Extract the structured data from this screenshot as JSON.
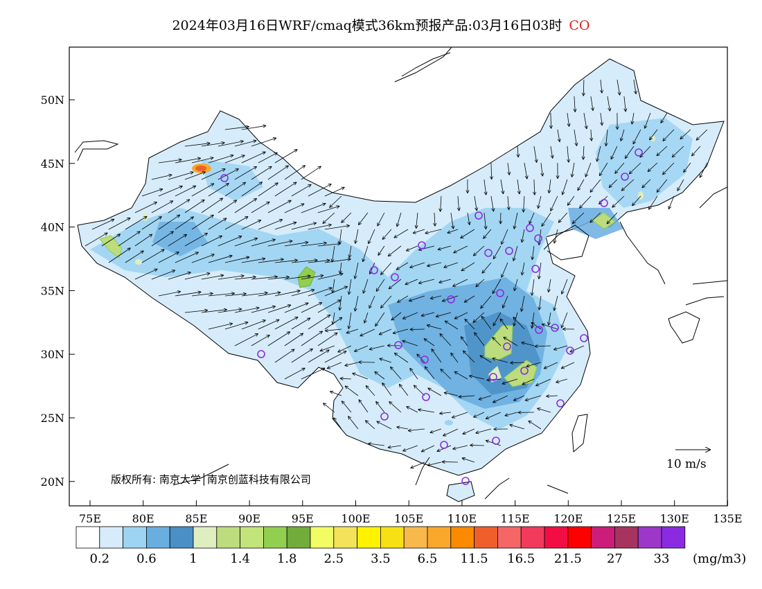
{
  "title": "2024年03月16日WRF/cmaq模式36km预报产品:03月16日03时",
  "pollutant": "CO",
  "x_ticks": [
    "75E",
    "80E",
    "85E",
    "90E",
    "95E",
    "100E",
    "105E",
    "110E",
    "115E",
    "120E",
    "125E",
    "130E",
    "135E"
  ],
  "y_ticks": [
    "50N",
    "45N",
    "40N",
    "35N",
    "30N",
    "25N",
    "20N"
  ],
  "copyright": "版权所有: 南京大学│南京创蓝科技有限公司",
  "scale_vector_label": "10 m/s",
  "colorbar": {
    "colors": [
      "#ffffff",
      "#d6ecfa",
      "#9dd4f2",
      "#6aaee0",
      "#4a8fc6",
      "#dfeebf",
      "#bcdc7e",
      "#c3e37b",
      "#92cf50",
      "#72ac3a",
      "#f2fc63",
      "#f3e25a",
      "#fff200",
      "#f7e014",
      "#f8b84c",
      "#f9a82b",
      "#fb8a00",
      "#ef5f2b",
      "#f56767",
      "#f23b5c",
      "#f20e44",
      "#ff0000",
      "#cc1e79",
      "#a6345e",
      "#9d37c9",
      "#8a2be2"
    ],
    "labels": [
      "0.2",
      "0.6",
      "1",
      "1.4",
      "1.8",
      "2.5",
      "3.5",
      "6.5",
      "11.5",
      "16.5",
      "21.5",
      "27",
      "33"
    ],
    "unit": "(mg/m3)"
  }
}
